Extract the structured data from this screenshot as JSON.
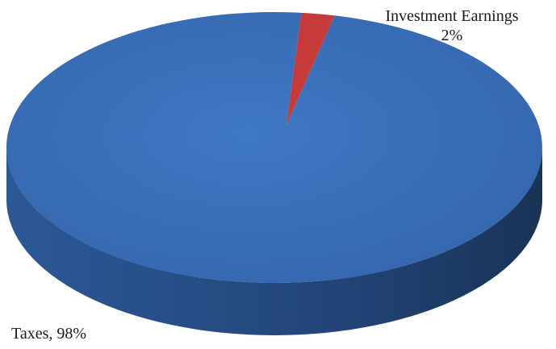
{
  "chart_data": {
    "type": "pie",
    "title": "",
    "slices": [
      {
        "label": "Taxes",
        "value": 98,
        "display": "Taxes, 98%",
        "color": "#3a6fb8"
      },
      {
        "label": "Investment Earnings",
        "value": 2,
        "display": "2%",
        "color": "#c63a3a"
      }
    ],
    "three_d": true,
    "legend": "none"
  }
}
